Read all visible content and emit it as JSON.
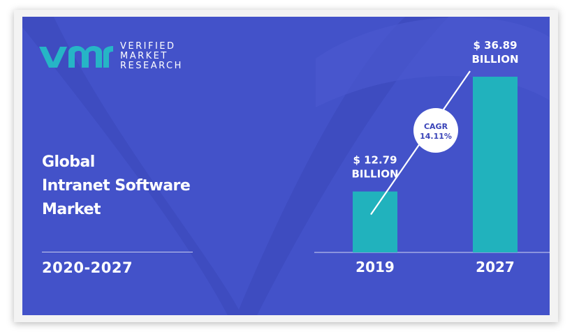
{
  "brand": {
    "lines": [
      "VERIFIED",
      "MARKET",
      "RESEARCH"
    ],
    "colors": {
      "logo_mark": "#26b5c6",
      "panel_bg": "#4352c9",
      "bar": "#21b2bd"
    }
  },
  "title_lines": [
    "Global",
    "Intranet Software",
    "Market"
  ],
  "period": "2020-2027",
  "chart_data": {
    "type": "bar",
    "categories": [
      "2019",
      "2027"
    ],
    "values": [
      12.79,
      36.89
    ],
    "value_label_lines": [
      [
        "$ 12.79",
        "BILLION"
      ],
      [
        "$ 36.89",
        "BILLION"
      ]
    ],
    "unit": "USD billion",
    "cagr": {
      "label": "CAGR",
      "value": "14.11%"
    },
    "grid": false,
    "legend": "none"
  }
}
